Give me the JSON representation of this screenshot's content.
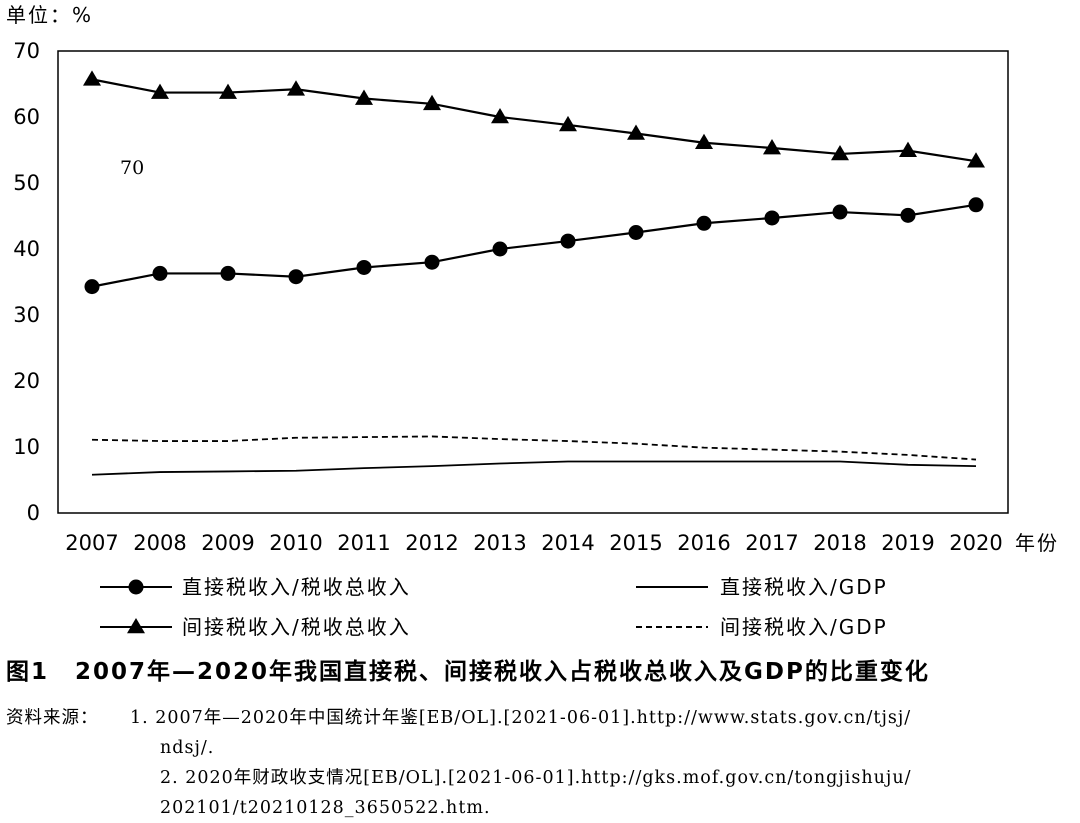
{
  "chart_data": {
    "type": "line",
    "unit_label": "单位：%",
    "xlabel": "年份",
    "ylim": [
      0,
      70
    ],
    "yticks": [
      0,
      10,
      20,
      30,
      40,
      50,
      60,
      70
    ],
    "categories": [
      "2007",
      "2008",
      "2009",
      "2010",
      "2011",
      "2012",
      "2013",
      "2014",
      "2015",
      "2016",
      "2017",
      "2018",
      "2019",
      "2020"
    ],
    "annotation": "70",
    "series": [
      {
        "name": "直接税收入/税收总收入",
        "marker": "circle",
        "style": "solid",
        "values": [
          34.3,
          36.3,
          36.3,
          35.8,
          37.2,
          38.0,
          40.0,
          41.2,
          42.5,
          43.9,
          44.7,
          45.6,
          45.1,
          46.7
        ]
      },
      {
        "name": "间接税收入/税收总收入",
        "marker": "triangle",
        "style": "solid",
        "values": [
          65.7,
          63.7,
          63.7,
          64.2,
          62.8,
          62.0,
          60.0,
          58.8,
          57.5,
          56.1,
          55.3,
          54.4,
          54.9,
          53.3
        ]
      },
      {
        "name": "直接税收入/GDP",
        "marker": "none",
        "style": "solid",
        "values": [
          5.8,
          6.2,
          6.3,
          6.4,
          6.8,
          7.1,
          7.5,
          7.8,
          7.8,
          7.8,
          7.8,
          7.8,
          7.3,
          7.1
        ]
      },
      {
        "name": "间接税收入/GDP",
        "marker": "none",
        "style": "dashed",
        "values": [
          11.1,
          10.9,
          10.9,
          11.4,
          11.5,
          11.6,
          11.2,
          10.9,
          10.5,
          9.9,
          9.6,
          9.3,
          8.8,
          8.1
        ]
      }
    ]
  },
  "caption": {
    "number": "图1",
    "text": "2007年—2020年我国直接税、间接税收入占税收总收入及GDP的比重变化"
  },
  "sources": {
    "head": "资料来源：",
    "item1_line1": "1. 2007年—2020年中国统计年鉴[EB/OL].[2021-06-01].http://www.stats.gov.cn/tjsj/",
    "item1_line2": "ndsj/.",
    "item2_line1": "2. 2020年财政收支情况[EB/OL].[2021-06-01].http://gks.mof.gov.cn/tongjishuju/",
    "item2_line2": "202101/t20210128_3650522.htm."
  }
}
